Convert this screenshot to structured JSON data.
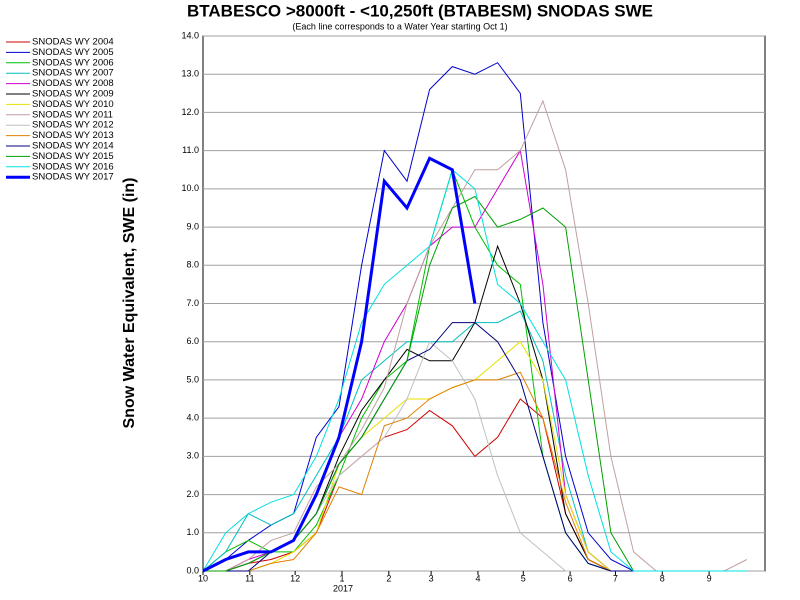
{
  "chart_data": {
    "type": "line",
    "title": "BTABESCO >8000ft - <10,250ft (BTABESM) SNODAS SWE",
    "subtitle": "(Each line corresponds to a Water Year starting Oct 1)",
    "y_label": "Snow Water Equivalent, SWE (in)",
    "year_label": "2017",
    "x": [
      0,
      15,
      30,
      45,
      60,
      75,
      90,
      105,
      120,
      135,
      150,
      165,
      180,
      195,
      210,
      225,
      240,
      255,
      270,
      285,
      300,
      315,
      330,
      345,
      360
    ],
    "xlim": [
      0,
      372
    ],
    "xticks": [
      {
        "value": 0,
        "label": "10"
      },
      {
        "value": 31,
        "label": "11"
      },
      {
        "value": 61,
        "label": "12"
      },
      {
        "value": 92,
        "label": "1"
      },
      {
        "value": 123,
        "label": "2"
      },
      {
        "value": 151,
        "label": "3"
      },
      {
        "value": 182,
        "label": "4"
      },
      {
        "value": 212,
        "label": "5"
      },
      {
        "value": 243,
        "label": "6"
      },
      {
        "value": 273,
        "label": "7"
      },
      {
        "value": 304,
        "label": "8"
      },
      {
        "value": 335,
        "label": "9"
      }
    ],
    "ylim": [
      0,
      14
    ],
    "yticks": [
      {
        "value": 0,
        "label": "0.0"
      },
      {
        "value": 1,
        "label": "1.0"
      },
      {
        "value": 2,
        "label": "2.0"
      },
      {
        "value": 3,
        "label": "3.0"
      },
      {
        "value": 4,
        "label": "4.0"
      },
      {
        "value": 5,
        "label": "5.0"
      },
      {
        "value": 6,
        "label": "6.0"
      },
      {
        "value": 7,
        "label": "7.0"
      },
      {
        "value": 8,
        "label": "8.0"
      },
      {
        "value": 9,
        "label": "9.0"
      },
      {
        "value": 10,
        "label": "10.0"
      },
      {
        "value": 11,
        "label": "11.0"
      },
      {
        "value": 12,
        "label": "12.0"
      },
      {
        "value": 13,
        "label": "13.0"
      },
      {
        "value": 14,
        "label": "14.0"
      }
    ],
    "grid": true,
    "series": [
      {
        "name": "SNODAS WY 2004",
        "color": "#d00000",
        "width": 1,
        "values": [
          0,
          0,
          0.2,
          0.3,
          0.5,
          1.0,
          2.5,
          3.0,
          3.5,
          3.7,
          4.2,
          3.8,
          3.0,
          3.5,
          4.5,
          4.0,
          1.5,
          0.3,
          0,
          0,
          0,
          0,
          0,
          0,
          0
        ]
      },
      {
        "name": "SNODAS WY 2005",
        "color": "#0000d0",
        "width": 1,
        "values": [
          0,
          0.3,
          0.8,
          1.2,
          1.5,
          3.5,
          4.3,
          8.0,
          11.0,
          10.2,
          12.6,
          13.2,
          13.0,
          13.3,
          12.5,
          6.5,
          3.0,
          1.0,
          0.3,
          0,
          0,
          0,
          0,
          0,
          0
        ]
      },
      {
        "name": "SNODAS WY 2006",
        "color": "#00c000",
        "width": 1,
        "values": [
          0,
          0.5,
          0.8,
          0.5,
          0.5,
          1.2,
          2.5,
          4.0,
          5.0,
          5.5,
          8.5,
          10.5,
          9.0,
          8.0,
          7.5,
          3.0,
          1.0,
          0.2,
          0,
          0,
          0,
          0,
          0,
          0,
          0
        ]
      },
      {
        "name": "SNODAS WY 2007",
        "color": "#00c0c0",
        "width": 1,
        "values": [
          0,
          0.5,
          1.5,
          1.2,
          1.5,
          2.5,
          3.5,
          5.0,
          5.5,
          6.0,
          6.0,
          6.0,
          6.5,
          6.5,
          6.8,
          5.5,
          2.5,
          0.5,
          0,
          0,
          0,
          0,
          0,
          0,
          0
        ]
      },
      {
        "name": "SNODAS WY 2008",
        "color": "#d000d0",
        "width": 1,
        "values": [
          0,
          0,
          0.3,
          0.5,
          0.8,
          2.0,
          3.5,
          4.5,
          6.0,
          7.0,
          8.5,
          9.0,
          9.0,
          10.0,
          11.0,
          7.5,
          2.0,
          0.5,
          0,
          0,
          0,
          0,
          0,
          0,
          0
        ]
      },
      {
        "name": "SNODAS WY 2009",
        "color": "#000000",
        "width": 1,
        "values": [
          0,
          0,
          0.2,
          0.5,
          0.8,
          1.5,
          3.0,
          4.2,
          5.0,
          5.8,
          5.5,
          5.5,
          6.5,
          8.5,
          7.0,
          5.0,
          1.5,
          0.3,
          0,
          0,
          0,
          0,
          0,
          0,
          0
        ]
      },
      {
        "name": "SNODAS WY 2010",
        "color": "#e8e000",
        "width": 1,
        "values": [
          0,
          0,
          0,
          0.2,
          0.5,
          1.0,
          2.8,
          3.5,
          4.0,
          4.5,
          4.5,
          4.8,
          5.0,
          5.5,
          6.0,
          5.0,
          2.0,
          0.5,
          0,
          0,
          0,
          0,
          0,
          0,
          0
        ]
      },
      {
        "name": "SNODAS WY 2011",
        "color": "#c0a0a0",
        "width": 1,
        "values": [
          0,
          0,
          0.3,
          0.8,
          1.0,
          2.2,
          2.8,
          3.7,
          4.8,
          7.0,
          8.5,
          9.5,
          10.5,
          10.5,
          11.0,
          12.3,
          10.5,
          7.0,
          3.0,
          0.5,
          0,
          0,
          0,
          0,
          0.3
        ]
      },
      {
        "name": "SNODAS WY 2012",
        "color": "#c0c0c0",
        "width": 1,
        "values": [
          0,
          0,
          0.2,
          0.5,
          0.8,
          1.5,
          2.5,
          3.0,
          3.5,
          4.5,
          6.0,
          5.5,
          4.5,
          2.5,
          1.0,
          0.5,
          0,
          0,
          0,
          0,
          0,
          0,
          0,
          0,
          0
        ]
      },
      {
        "name": "SNODAS WY 2013",
        "color": "#e08000",
        "width": 1,
        "values": [
          0,
          0,
          0,
          0.2,
          0.3,
          1.0,
          2.2,
          2.0,
          3.8,
          4.0,
          4.5,
          4.8,
          5.0,
          5.0,
          5.2,
          4.0,
          1.8,
          0.3,
          0,
          0,
          0,
          0,
          0,
          0,
          0
        ]
      },
      {
        "name": "SNODAS WY 2014",
        "color": "#000080",
        "width": 1,
        "values": [
          0,
          0,
          0,
          0.5,
          0.8,
          1.5,
          2.8,
          3.5,
          4.5,
          5.5,
          5.8,
          6.5,
          6.5,
          6.0,
          5.0,
          3.0,
          1.0,
          0.2,
          0,
          0,
          0,
          0,
          0,
          0,
          0
        ]
      },
      {
        "name": "SNODAS WY 2015",
        "color": "#00a000",
        "width": 1,
        "values": [
          0,
          0,
          0.2,
          0.5,
          0.8,
          1.5,
          2.8,
          3.5,
          4.5,
          5.5,
          8.0,
          9.5,
          9.8,
          9.0,
          9.2,
          9.5,
          9.0,
          5.0,
          1.0,
          0,
          0,
          0,
          0,
          0,
          0
        ]
      },
      {
        "name": "SNODAS WY 2016",
        "color": "#00e0e0",
        "width": 1,
        "values": [
          0,
          1.0,
          1.5,
          1.8,
          2.0,
          3.0,
          4.5,
          6.5,
          7.5,
          8.0,
          8.5,
          10.5,
          10.0,
          7.5,
          7.0,
          6.0,
          5.0,
          2.5,
          0.5,
          0,
          0,
          0,
          0,
          0,
          0
        ]
      },
      {
        "name": "SNODAS WY 2017",
        "color": "#0000ff",
        "width": 3,
        "values": [
          0,
          0.3,
          0.5,
          0.5,
          0.8,
          2.0,
          3.5,
          6.0,
          10.2,
          9.5,
          10.8,
          10.5,
          7.0,
          null,
          null,
          null,
          null,
          null,
          null,
          null,
          null,
          null,
          null,
          null,
          null
        ]
      }
    ]
  }
}
